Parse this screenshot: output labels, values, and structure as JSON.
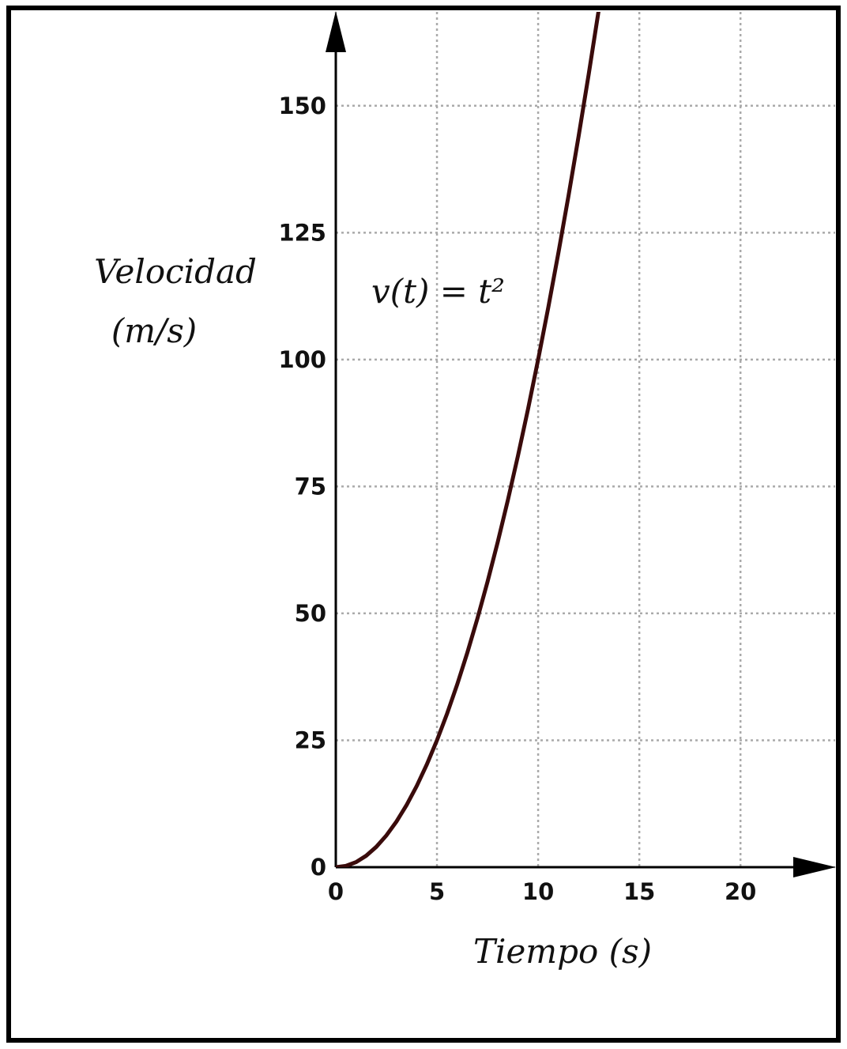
{
  "chart_data": {
    "type": "line",
    "annotation": "v(t) = t²",
    "ylabel": [
      "Velocidad",
      "(m/s)"
    ],
    "xlabel": "Tiempo (s)",
    "x": [
      0,
      0.5,
      1,
      1.5,
      2,
      2.5,
      3,
      3.5,
      4,
      4.5,
      5,
      5.5,
      6,
      6.5,
      7,
      7.5,
      8,
      8.5,
      9,
      9.5,
      10,
      10.5,
      11,
      11.5,
      12,
      12.5,
      13
    ],
    "values": [
      0,
      0.25,
      1,
      2.25,
      4,
      6.25,
      9,
      12.25,
      16,
      20.25,
      25,
      30.25,
      36,
      42.25,
      49,
      56.25,
      64,
      72.25,
      81,
      90.25,
      100,
      110.25,
      121,
      132.25,
      144,
      156.25,
      169
    ],
    "color": "#3a0b0b",
    "xlim": [
      0,
      24.6
    ],
    "ylim": [
      0,
      168.5
    ],
    "xticks": [
      0,
      5,
      10,
      15,
      20
    ],
    "yticks": [
      0,
      25,
      50,
      75,
      100,
      125,
      150
    ],
    "grid": true
  }
}
